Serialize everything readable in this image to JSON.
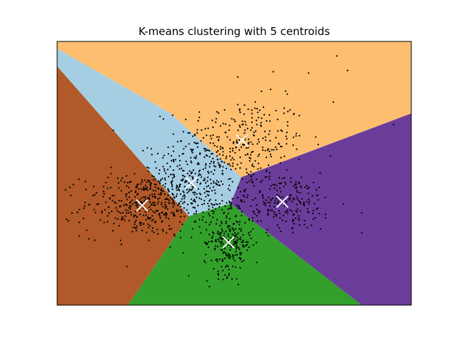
{
  "chart_data": {
    "type": "scatter",
    "title": "K-means clustering with 5 centroids",
    "xlabel": "",
    "ylabel": "",
    "xlim": [
      0,
      1
    ],
    "ylim": [
      0,
      1
    ],
    "ticks": "none",
    "grid": false,
    "legend": "none",
    "regions": [
      {
        "name": "region-top",
        "color": "#fdbf6f",
        "polygon": [
          [
            0,
            1
          ],
          [
            1,
            1
          ],
          [
            1,
            0.727
          ],
          [
            0.52,
            0.485
          ],
          [
            0.32,
            0.728
          ],
          [
            0,
            0.973
          ]
        ]
      },
      {
        "name": "region-left",
        "color": "#b15928",
        "polygon": [
          [
            0,
            0
          ],
          [
            0.2,
            0
          ],
          [
            0.372,
            0.337
          ],
          [
            0,
            0.906
          ]
        ]
      },
      {
        "name": "region-diagonal",
        "color": "#a6cee3",
        "polygon": [
          [
            0,
            0.973
          ],
          [
            0.32,
            0.728
          ],
          [
            0.52,
            0.485
          ],
          [
            0.49,
            0.385
          ],
          [
            0.372,
            0.337
          ],
          [
            0,
            0.906
          ]
        ]
      },
      {
        "name": "region-bottom",
        "color": "#33a02c",
        "polygon": [
          [
            0.2,
            0
          ],
          [
            0.86,
            0
          ],
          [
            0.49,
            0.385
          ],
          [
            0.372,
            0.337
          ]
        ]
      },
      {
        "name": "region-right",
        "color": "#6a3d9a",
        "polygon": [
          [
            0.86,
            0
          ],
          [
            1,
            0
          ],
          [
            1,
            0.727
          ],
          [
            0.52,
            0.485
          ],
          [
            0.49,
            0.385
          ]
        ]
      }
    ],
    "centroids": [
      {
        "x": 0.522,
        "y": 0.625
      },
      {
        "x": 0.379,
        "y": 0.463
      },
      {
        "x": 0.24,
        "y": 0.378
      },
      {
        "x": 0.636,
        "y": 0.392
      },
      {
        "x": 0.484,
        "y": 0.238
      }
    ],
    "clusters": [
      {
        "cx": 0.522,
        "cy": 0.625,
        "sx": 0.09,
        "sy": 0.08,
        "n": 260
      },
      {
        "cx": 0.379,
        "cy": 0.463,
        "sx": 0.075,
        "sy": 0.075,
        "n": 360
      },
      {
        "cx": 0.24,
        "cy": 0.378,
        "sx": 0.085,
        "sy": 0.06,
        "n": 340
      },
      {
        "cx": 0.636,
        "cy": 0.392,
        "sx": 0.075,
        "sy": 0.055,
        "n": 230
      },
      {
        "cx": 0.484,
        "cy": 0.238,
        "sx": 0.035,
        "sy": 0.06,
        "n": 230
      }
    ],
    "outliers": [
      {
        "x": 0.79,
        "y": 0.945
      },
      {
        "x": 0.82,
        "y": 0.89
      },
      {
        "x": 0.71,
        "y": 0.88
      },
      {
        "x": 0.61,
        "y": 0.885
      },
      {
        "x": 0.51,
        "y": 0.865
      },
      {
        "x": 0.65,
        "y": 0.8
      },
      {
        "x": 0.78,
        "y": 0.77
      },
      {
        "x": 0.95,
        "y": 0.685
      },
      {
        "x": 0.86,
        "y": 0.35
      },
      {
        "x": 0.86,
        "y": 0.275
      },
      {
        "x": 0.43,
        "y": 0.07
      }
    ],
    "colors": {
      "points": "#000000",
      "centroid_marker": "#ffffff"
    }
  },
  "title_text": "K-means clustering with 5 centroids"
}
